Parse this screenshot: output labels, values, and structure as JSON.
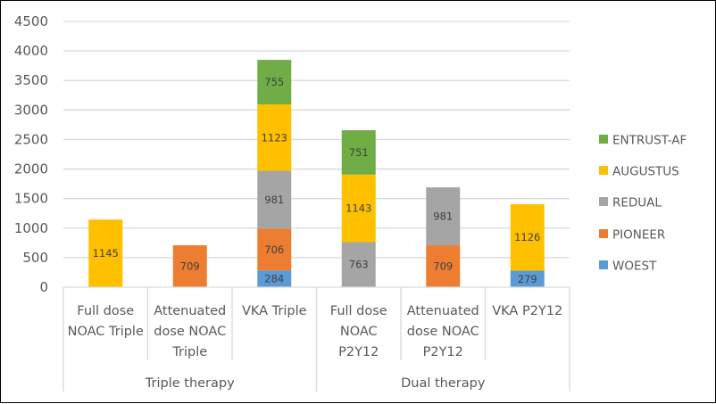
{
  "chart_data": {
    "type": "bar",
    "stacked": true,
    "title": "",
    "xlabel": "",
    "ylabel": "",
    "ylim": [
      0,
      4500
    ],
    "yticks": [
      0,
      500,
      1000,
      1500,
      2000,
      2500,
      3000,
      3500,
      4000,
      4500
    ],
    "grid": true,
    "legend_position": "right",
    "groups": [
      {
        "label": "Triple therapy",
        "categories": [
          "Full dose NOAC Triple",
          "Attenuated dose NOAC Triple",
          "VKA Triple"
        ]
      },
      {
        "label": "Dual therapy",
        "categories": [
          "Full dose NOAC P2Y12",
          "Attenuated dose NOAC P2Y12",
          "VKA P2Y12"
        ]
      }
    ],
    "categories": [
      {
        "name": "Full dose NOAC Triple",
        "lines": [
          "Full dose",
          "NOAC Triple"
        ]
      },
      {
        "name": "Attenuated dose NOAC Triple",
        "lines": [
          "Attenuated",
          "dose NOAC",
          "Triple"
        ]
      },
      {
        "name": "VKA Triple",
        "lines": [
          "VKA Triple"
        ]
      },
      {
        "name": "Full dose NOAC P2Y12",
        "lines": [
          "Full dose",
          "NOAC",
          "P2Y12"
        ]
      },
      {
        "name": "Attenuated dose NOAC P2Y12",
        "lines": [
          "Attenuated",
          "dose NOAC",
          "P2Y12"
        ]
      },
      {
        "name": "VKA P2Y12",
        "lines": [
          "VKA P2Y12"
        ]
      }
    ],
    "series": [
      {
        "name": "WOEST",
        "color": "#5B9BD5",
        "values": [
          null,
          null,
          284,
          null,
          null,
          279
        ]
      },
      {
        "name": "PIONEER",
        "color": "#ED7D31",
        "values": [
          null,
          709,
          706,
          null,
          709,
          null
        ]
      },
      {
        "name": "REDUAL",
        "color": "#A5A5A5",
        "values": [
          null,
          null,
          981,
          763,
          981,
          null
        ]
      },
      {
        "name": "AUGUSTUS",
        "color": "#FFC000",
        "values": [
          1145,
          null,
          1123,
          1143,
          null,
          1126
        ]
      },
      {
        "name": "ENTRUST-AF",
        "color": "#70AD47",
        "values": [
          null,
          null,
          755,
          751,
          null,
          null
        ]
      }
    ],
    "legend_order": [
      "ENTRUST-AF",
      "AUGUSTUS",
      "REDUAL",
      "PIONEER",
      "WOEST"
    ]
  }
}
